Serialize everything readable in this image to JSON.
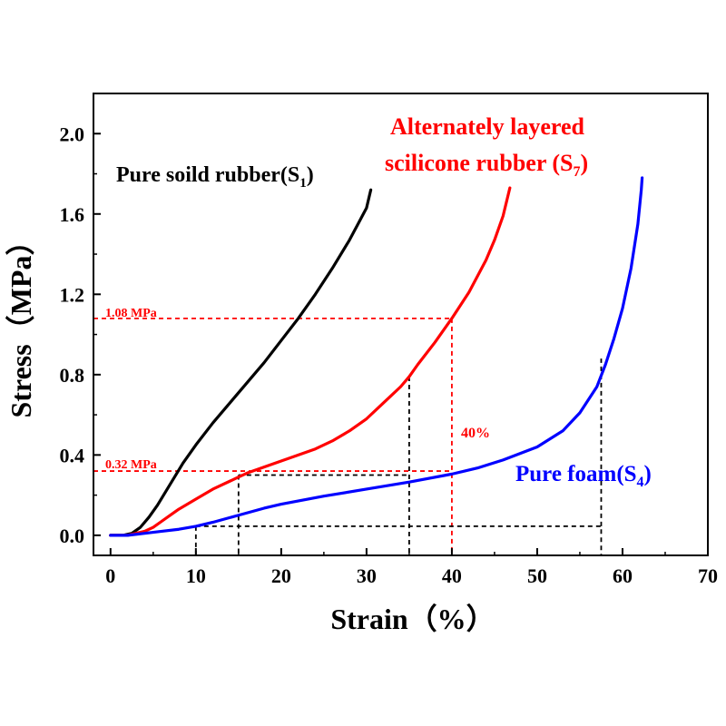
{
  "chart_data": {
    "type": "line",
    "xlabel": "Strain（%）",
    "ylabel": "Stress（MPa）",
    "xlim": [
      -2,
      70
    ],
    "ylim": [
      -0.1,
      2.2
    ],
    "x_ticks": [
      0,
      10,
      20,
      30,
      40,
      50,
      60,
      70
    ],
    "y_ticks": [
      0.0,
      0.4,
      0.8,
      1.2,
      1.6,
      2.0
    ],
    "x_tick_labels": [
      "0",
      "10",
      "20",
      "30",
      "40",
      "50",
      "60",
      "70"
    ],
    "y_tick_labels": [
      "0.0",
      "0.4",
      "0.8",
      "1.2",
      "1.6",
      "2.0"
    ],
    "grid": false,
    "series": [
      {
        "name": "Pure soild rubber(S1)",
        "color": "#000000",
        "points": [
          [
            0,
            0
          ],
          [
            1.5,
            0.0
          ],
          [
            2.5,
            0.01
          ],
          [
            3.5,
            0.04
          ],
          [
            4.5,
            0.09
          ],
          [
            5.5,
            0.15
          ],
          [
            6.5,
            0.22
          ],
          [
            7.5,
            0.29
          ],
          [
            8.5,
            0.36
          ],
          [
            10,
            0.45
          ],
          [
            12,
            0.56
          ],
          [
            14,
            0.66
          ],
          [
            16,
            0.76
          ],
          [
            18,
            0.86
          ],
          [
            20,
            0.97
          ],
          [
            22,
            1.08
          ],
          [
            24,
            1.2
          ],
          [
            26,
            1.33
          ],
          [
            28,
            1.47
          ],
          [
            29,
            1.55
          ],
          [
            30,
            1.63
          ],
          [
            30.5,
            1.72
          ]
        ]
      },
      {
        "name": "Alternately layered scilicone rubber (S7)",
        "color": "#ff0000",
        "points": [
          [
            0,
            0
          ],
          [
            2,
            0.0
          ],
          [
            3,
            0.01
          ],
          [
            4,
            0.02
          ],
          [
            5,
            0.04
          ],
          [
            6,
            0.07
          ],
          [
            7,
            0.1
          ],
          [
            8,
            0.13
          ],
          [
            10,
            0.18
          ],
          [
            12,
            0.23
          ],
          [
            14,
            0.27
          ],
          [
            15,
            0.29
          ],
          [
            16,
            0.31
          ],
          [
            18,
            0.34
          ],
          [
            20,
            0.37
          ],
          [
            22,
            0.4
          ],
          [
            24,
            0.43
          ],
          [
            26,
            0.47
          ],
          [
            28,
            0.52
          ],
          [
            30,
            0.58
          ],
          [
            32,
            0.66
          ],
          [
            34,
            0.74
          ],
          [
            35,
            0.79
          ],
          [
            36,
            0.85
          ],
          [
            38,
            0.96
          ],
          [
            40,
            1.08
          ],
          [
            42,
            1.21
          ],
          [
            44,
            1.37
          ],
          [
            45,
            1.47
          ],
          [
            46,
            1.59
          ],
          [
            46.8,
            1.73
          ]
        ]
      },
      {
        "name": "Pure foam(S4)",
        "color": "#0000ff",
        "points": [
          [
            0,
            0
          ],
          [
            2,
            0.0
          ],
          [
            4,
            0.01
          ],
          [
            6,
            0.02
          ],
          [
            8,
            0.03
          ],
          [
            10,
            0.045
          ],
          [
            12,
            0.065
          ],
          [
            15,
            0.1
          ],
          [
            18,
            0.135
          ],
          [
            20,
            0.155
          ],
          [
            25,
            0.195
          ],
          [
            30,
            0.23
          ],
          [
            35,
            0.265
          ],
          [
            40,
            0.305
          ],
          [
            43,
            0.335
          ],
          [
            46,
            0.375
          ],
          [
            50,
            0.44
          ],
          [
            53,
            0.52
          ],
          [
            55,
            0.61
          ],
          [
            57,
            0.74
          ],
          [
            58,
            0.85
          ],
          [
            59,
            0.98
          ],
          [
            60,
            1.13
          ],
          [
            61,
            1.33
          ],
          [
            61.8,
            1.55
          ],
          [
            62.2,
            1.72
          ],
          [
            62.3,
            1.78
          ]
        ]
      }
    ],
    "reference_lines": [
      {
        "color": "#ff0000",
        "points": [
          [
            -2,
            1.08
          ],
          [
            40,
            1.08
          ]
        ]
      },
      {
        "color": "#ff0000",
        "points": [
          [
            -2,
            0.32
          ],
          [
            40,
            0.32
          ]
        ]
      },
      {
        "color": "#ff0000",
        "points": [
          [
            40,
            1.08
          ],
          [
            40,
            -0.1
          ]
        ]
      },
      {
        "color": "#000000",
        "points": [
          [
            10,
            0.045
          ],
          [
            10,
            -0.1
          ]
        ]
      },
      {
        "color": "#000000",
        "points": [
          [
            10,
            0.045
          ],
          [
            57.5,
            0.045
          ],
          [
            57.5,
            -0.1
          ]
        ]
      },
      {
        "color": "#000000",
        "points": [
          [
            57.5,
            0.045
          ],
          [
            57.5,
            0.88
          ]
        ]
      },
      {
        "color": "#000000",
        "points": [
          [
            15,
            0.3
          ],
          [
            15,
            -0.1
          ]
        ]
      },
      {
        "color": "#000000",
        "points": [
          [
            15,
            0.3
          ],
          [
            35,
            0.3
          ]
        ]
      },
      {
        "color": "#000000",
        "points": [
          [
            35,
            0.79
          ],
          [
            35,
            -0.1
          ]
        ]
      }
    ],
    "annotations": {
      "s1_label": {
        "main": "Pure soild rubber(S",
        "sub": "1",
        "close": ")"
      },
      "s7_label_line1": "Alternately layered",
      "s7_label_line2": {
        "main": "scilicone rubber (S",
        "sub": "7",
        "close": ")"
      },
      "s4_label": {
        "main": "Pure foam(S",
        "sub": "4",
        "close": ")"
      },
      "label_108": "1.08 MPa",
      "label_032": "0.32 MPa",
      "label_40pct": "40%"
    }
  }
}
